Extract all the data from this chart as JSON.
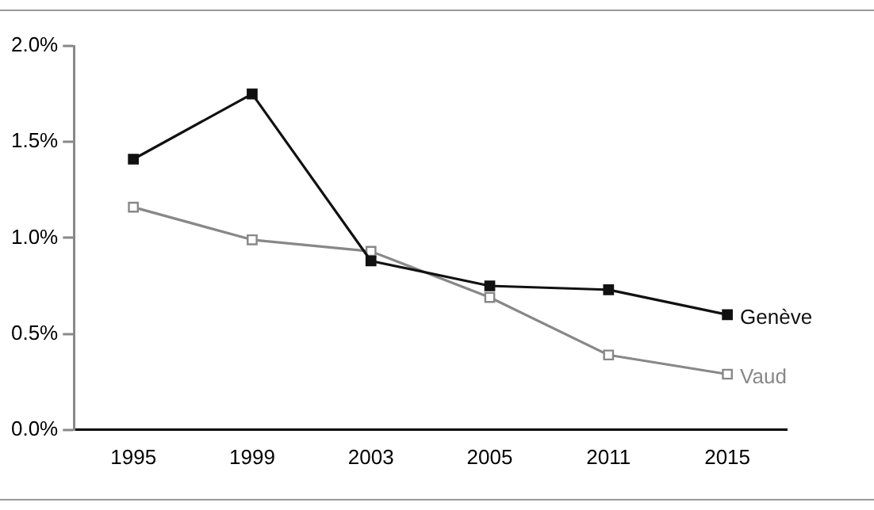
{
  "chart_data": {
    "type": "line",
    "categories": [
      "1995",
      "1999",
      "2003",
      "2005",
      "2011",
      "2015"
    ],
    "series": [
      {
        "name": "Genève",
        "color": "#111111",
        "values": [
          1.41,
          1.75,
          0.88,
          0.75,
          0.73,
          0.6
        ]
      },
      {
        "name": "Vaud",
        "color": "#888888",
        "values": [
          1.16,
          0.99,
          0.93,
          0.69,
          0.39,
          0.29
        ]
      }
    ],
    "ylim": [
      0,
      2
    ],
    "yticks": [
      {
        "value": 0,
        "label": "0.0%"
      },
      {
        "value": 0.5,
        "label": "0.5%"
      },
      {
        "value": 1,
        "label": "1.0%"
      },
      {
        "value": 1.5,
        "label": "1.5%"
      },
      {
        "value": 2,
        "label": "2.0%"
      }
    ],
    "grid": false,
    "marker": "square",
    "line_style": "solid"
  }
}
